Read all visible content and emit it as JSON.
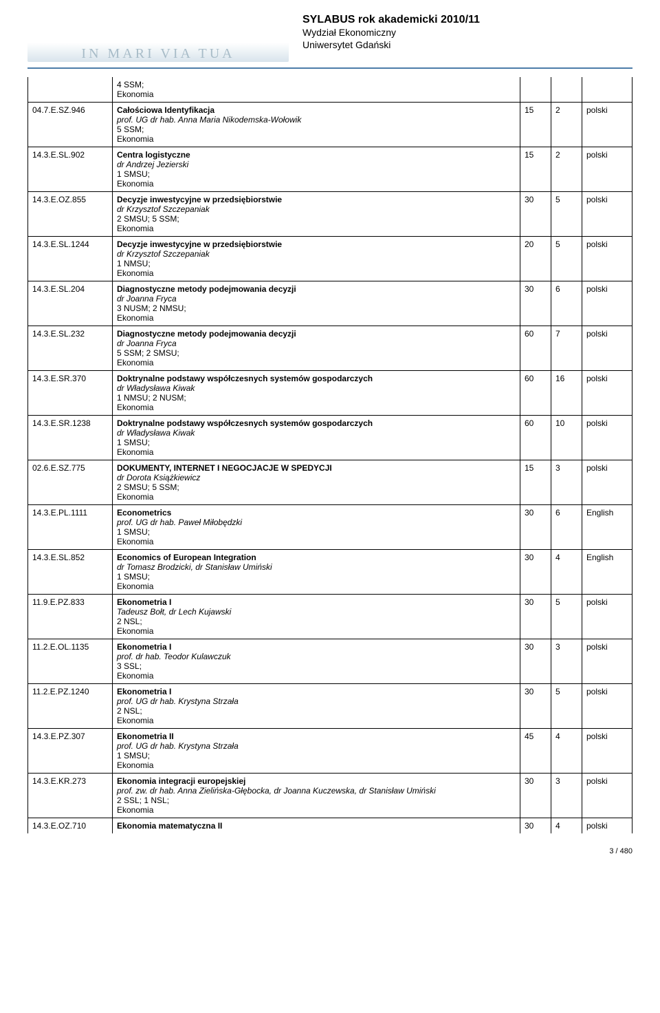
{
  "header": {
    "logo_text": "IN MARI VIA TUA",
    "title": "SYLABUS rok akademicki 2010/11",
    "sub1": "Wydział Ekonomiczny",
    "sub2": "Uniwersytet Gdański"
  },
  "pre_rows": [
    {
      "text1": "4 SSM;",
      "text2": "Ekonomia"
    }
  ],
  "rows": [
    {
      "code": "04.7.E.SZ.946",
      "title": "Całościowa Identyfikacja",
      "instructor": "prof. UG dr hab. Anna Maria Nikodemska-Wołowik",
      "schedule": "5 SSM;",
      "subject": "Ekonomia",
      "hours": "15",
      "ects": "2",
      "lang": "polski"
    },
    {
      "code": "14.3.E.SL.902",
      "title": "Centra logistyczne",
      "instructor": "dr Andrzej Jezierski",
      "schedule": "1 SMSU;",
      "subject": "Ekonomia",
      "hours": "15",
      "ects": "2",
      "lang": "polski"
    },
    {
      "code": "14.3.E.OZ.855",
      "title": "Decyzje inwestycyjne w przedsiębiorstwie",
      "instructor": "dr Krzysztof Szczepaniak",
      "schedule": "2 SMSU; 5 SSM;",
      "subject": "Ekonomia",
      "hours": "30",
      "ects": "5",
      "lang": "polski"
    },
    {
      "code": "14.3.E.SL.1244",
      "title": "Decyzje inwestycyjne w przedsiębiorstwie",
      "instructor": "dr Krzysztof Szczepaniak",
      "schedule": "1 NMSU;",
      "subject": "Ekonomia",
      "hours": "20",
      "ects": "5",
      "lang": "polski"
    },
    {
      "code": "14.3.E.SL.204",
      "title": "Diagnostyczne metody podejmowania decyzji",
      "instructor": "dr Joanna Fryca",
      "schedule": "3 NUSM; 2 NMSU;",
      "subject": "Ekonomia",
      "hours": "30",
      "ects": "6",
      "lang": "polski"
    },
    {
      "code": "14.3.E.SL.232",
      "title": "Diagnostyczne metody podejmowania decyzji",
      "instructor": "dr Joanna Fryca",
      "schedule": "5 SSM; 2 SMSU;",
      "subject": "Ekonomia",
      "hours": "60",
      "ects": "7",
      "lang": "polski"
    },
    {
      "code": "14.3.E.SR.370",
      "title": "Doktrynalne podstawy współczesnych systemów gospodarczych",
      "instructor": "dr Władysława Kiwak",
      "schedule": "1 NMSU; 2 NUSM;",
      "subject": "Ekonomia",
      "hours": "60",
      "ects": "16",
      "lang": "polski"
    },
    {
      "code": "14.3.E.SR.1238",
      "title": "Doktrynalne podstawy współczesnych systemów gospodarczych",
      "instructor": "dr Władysława Kiwak",
      "schedule": "1 SMSU;",
      "subject": "Ekonomia",
      "hours": "60",
      "ects": "10",
      "lang": "polski"
    },
    {
      "code": "02.6.E.SZ.775",
      "title": "DOKUMENTY, INTERNET I NEGOCJACJE W SPEDYCJI",
      "instructor": "dr Dorota Książkiewicz",
      "schedule": "2 SMSU; 5 SSM;",
      "subject": "Ekonomia",
      "hours": "15",
      "ects": "3",
      "lang": "polski"
    },
    {
      "code": "14.3.E.PL.1111",
      "title": "Econometrics",
      "instructor": "prof. UG dr hab. Paweł Miłobędzki",
      "schedule": "1 SMSU;",
      "subject": "Ekonomia",
      "hours": "30",
      "ects": "6",
      "lang": "English"
    },
    {
      "code": "14.3.E.SL.852",
      "title": "Economics of European Integration",
      "instructor": "dr Tomasz Brodzicki, dr Stanisław Umiński",
      "schedule": "1 SMSU;",
      "subject": "Ekonomia",
      "hours": "30",
      "ects": "4",
      "lang": "English"
    },
    {
      "code": "11.9.E.PZ.833",
      "title": "Ekonometria I",
      "instructor": " Tadeusz Bołt, dr Lech Kujawski",
      "schedule": "2 NSL;",
      "subject": "Ekonomia",
      "hours": "30",
      "ects": "5",
      "lang": "polski"
    },
    {
      "code": "11.2.E.OL.1135",
      "title": "Ekonometria I",
      "instructor": "prof. dr hab. Teodor Kulawczuk",
      "schedule": "3 SSL;",
      "subject": "Ekonomia",
      "hours": "30",
      "ects": "3",
      "lang": "polski"
    },
    {
      "code": "11.2.E.PZ.1240",
      "title": "Ekonometria I",
      "instructor": "prof. UG dr hab. Krystyna Strzała",
      "schedule": "2 NSL;",
      "subject": "Ekonomia",
      "hours": "30",
      "ects": "5",
      "lang": "polski"
    },
    {
      "code": "14.3.E.PZ.307",
      "title": "Ekonometria II",
      "instructor": "prof. UG dr hab. Krystyna Strzała",
      "schedule": "1 SMSU;",
      "subject": "Ekonomia",
      "hours": "45",
      "ects": "4",
      "lang": "polski"
    },
    {
      "code": "14.3.E.KR.273",
      "title": "Ekonomia integracji europejskiej",
      "instructor": "prof. zw. dr hab. Anna Zielińska-Głębocka, dr Joanna Kuczewska, dr Stanisław Umiński",
      "schedule": "2 SSL; 1 NSL;",
      "subject": "Ekonomia",
      "hours": "30",
      "ects": "3",
      "lang": "polski"
    },
    {
      "code": "14.3.E.OZ.710",
      "title": "Ekonomia matematyczna II",
      "instructor": null,
      "schedule": null,
      "subject": null,
      "hours": "30",
      "ects": "4",
      "lang": "polski"
    }
  ],
  "footer": "3 / 480"
}
